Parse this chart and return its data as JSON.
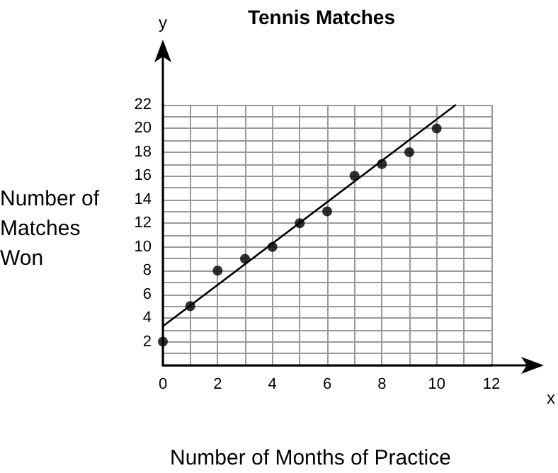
{
  "chart_data": {
    "type": "scatter",
    "title": "Tennis Matches",
    "xlabel": "Number of Months of Practice",
    "ylabel": "Number of Matches Won",
    "annotations": [
      "x",
      "y"
    ],
    "x": [
      0,
      1,
      2,
      3,
      4,
      5,
      6,
      7,
      8,
      9,
      10
    ],
    "series": [
      {
        "color": "#000000",
        "values": [
          2,
          5,
          8,
          9,
          10,
          12,
          13,
          16,
          17,
          18,
          20
        ]
      },
      {
        "type": "line",
        "marker": "none",
        "color": "#000000",
        "x": [
          0,
          10.7
        ],
        "values": [
          3.3,
          22
        ]
      }
    ],
    "xlim": [
      0,
      12
    ],
    "ylim": [
      0,
      22
    ],
    "xticks": [
      0,
      {
        "value": 1,
        "label": null
      },
      2,
      {
        "value": 3,
        "label": null
      },
      4,
      {
        "value": 5,
        "label": null
      },
      6,
      {
        "value": 7,
        "label": null
      },
      8,
      {
        "value": 9,
        "label": null
      },
      10,
      {
        "value": 11,
        "label": null
      },
      12
    ],
    "yticks": [
      {
        "value": 0,
        "label": null
      },
      {
        "value": 1,
        "label": null
      },
      2,
      {
        "value": 3,
        "label": null
      },
      4,
      {
        "value": 5,
        "label": null
      },
      6,
      {
        "value": 7,
        "label": null
      },
      8,
      {
        "value": 9,
        "label": null
      },
      10,
      {
        "value": 11,
        "label": null
      },
      12,
      {
        "value": 13,
        "label": null
      },
      14,
      {
        "value": 15,
        "label": null
      },
      16,
      {
        "value": 17,
        "label": null
      },
      18,
      {
        "value": 19,
        "label": null
      },
      20,
      {
        "value": 21,
        "label": null
      },
      22
    ],
    "grid": true,
    "marker": "circle",
    "line_style": "solid"
  }
}
